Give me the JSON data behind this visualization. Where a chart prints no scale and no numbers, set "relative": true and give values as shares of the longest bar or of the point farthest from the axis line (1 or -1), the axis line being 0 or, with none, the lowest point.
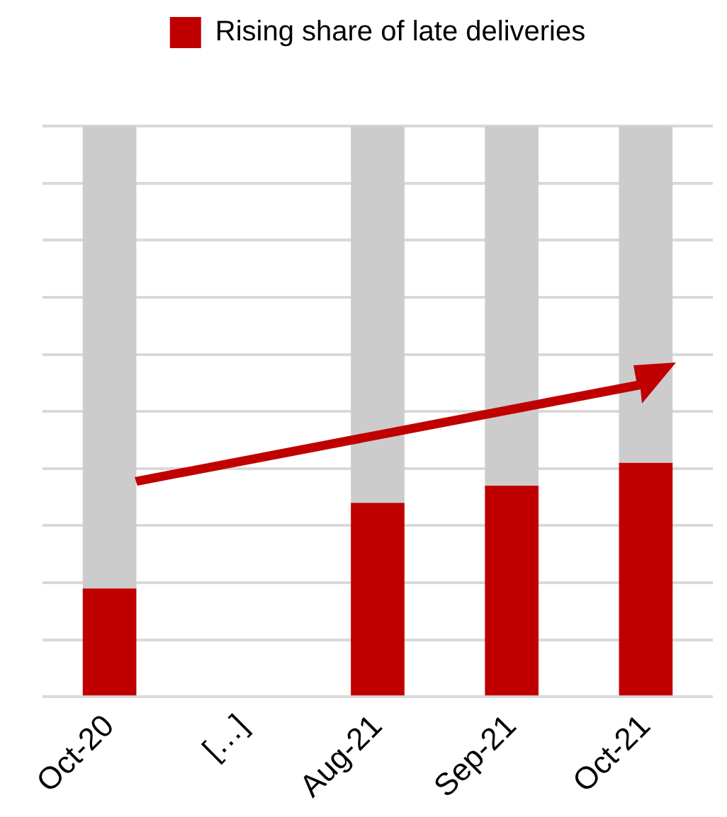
{
  "chart_data": {
    "type": "bar",
    "relative": true,
    "stacked": true,
    "categories": [
      "Oct-20",
      "[…]",
      "Aug-21",
      "Sep-21",
      "Oct-21"
    ],
    "series": [
      {
        "name": "Rising share of late deliveries",
        "color": "#c00000",
        "values": [
          0.19,
          null,
          0.34,
          0.37,
          0.41
        ]
      },
      {
        "color": "#cccccc",
        "values": [
          0.81,
          null,
          0.66,
          0.63,
          0.59
        ]
      }
    ],
    "grid": "y",
    "legend": "top",
    "tick_labels": "x"
  }
}
